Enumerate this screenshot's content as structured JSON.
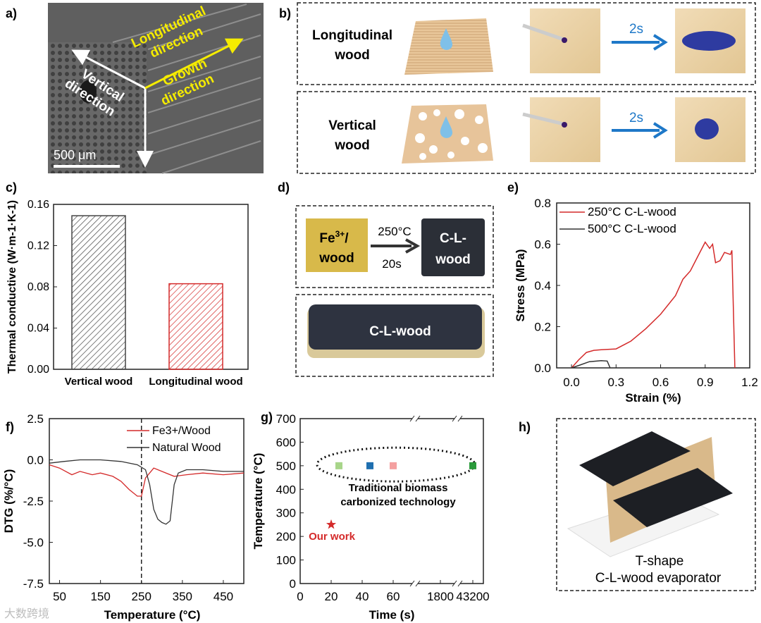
{
  "colors": {
    "red": "#d42a2a",
    "dark": "#222222",
    "blue": "#1e78c8",
    "yellow": "#f5ec00",
    "star": "#d42a2a",
    "hatch_dark": "#444444",
    "hatch_red": "#d42a2a",
    "sem": "#5f5f5f"
  },
  "panels": {
    "a": "a)",
    "b": "b)",
    "c": "c)",
    "d": "d)",
    "e": "e)",
    "f": "f)",
    "g": "g)",
    "h": "h)"
  },
  "sem": {
    "longitudinal": "Longitudinal direction",
    "vertical": "Vertical direction",
    "growth": "Growth direction",
    "scale": "500 μm"
  },
  "wetting": {
    "row1_label": "Longitudinal wood",
    "row2_label": "Vertical wood",
    "time": "2s"
  },
  "process": {
    "left": "Fe3+/wood",
    "arrow_top": "250°C",
    "arrow_bottom": "20s",
    "right": "C-L-wood",
    "photo": "C-L-wood"
  },
  "evaporator": {
    "caption": "T-shape C-L-wood evaporator"
  },
  "watermark": "大数跨境",
  "chart_data": [
    {
      "id": "c",
      "type": "bar",
      "categories": [
        "Vertical wood",
        "Longitudinal wood"
      ],
      "values": [
        0.149,
        0.083
      ],
      "ylabel": "Thermal conductive (W·m-1·K-1)",
      "ylim": [
        0,
        0.16
      ],
      "yticks": [
        "0.00",
        "0.04",
        "0.08",
        "0.12",
        "0.16"
      ]
    },
    {
      "id": "e",
      "type": "line",
      "xlabel": "Strain (%)",
      "ylabel": "Stress (MPa)",
      "xlim": [
        -0.1,
        1.2
      ],
      "ylim": [
        0,
        0.8
      ],
      "xticks": [
        "0.0",
        "0.3",
        "0.6",
        "0.9",
        "1.2"
      ],
      "yticks": [
        "0.0",
        "0.2",
        "0.4",
        "0.6",
        "0.8"
      ],
      "legend_position": "top-left",
      "series": [
        {
          "name": "250°C C-L-wood",
          "color": "#d42a2a",
          "points": [
            [
              0,
              0
            ],
            [
              0.05,
              0.04
            ],
            [
              0.1,
              0.075
            ],
            [
              0.15,
              0.085
            ],
            [
              0.2,
              0.088
            ],
            [
              0.3,
              0.092
            ],
            [
              0.4,
              0.13
            ],
            [
              0.5,
              0.19
            ],
            [
              0.6,
              0.26
            ],
            [
              0.7,
              0.35
            ],
            [
              0.75,
              0.43
            ],
            [
              0.8,
              0.47
            ],
            [
              0.85,
              0.54
            ],
            [
              0.9,
              0.61
            ],
            [
              0.93,
              0.58
            ],
            [
              0.95,
              0.6
            ],
            [
              0.97,
              0.51
            ],
            [
              1.0,
              0.52
            ],
            [
              1.03,
              0.56
            ],
            [
              1.07,
              0.55
            ],
            [
              1.08,
              0.57
            ],
            [
              1.1,
              0.0
            ]
          ]
        },
        {
          "name": "500°C C-L-wood",
          "color": "#333333",
          "points": [
            [
              0,
              0
            ],
            [
              0.05,
              0.012
            ],
            [
              0.12,
              0.03
            ],
            [
              0.2,
              0.035
            ],
            [
              0.24,
              0.033
            ],
            [
              0.26,
              0.0
            ]
          ]
        }
      ]
    },
    {
      "id": "f",
      "type": "line",
      "xlabel": "Temperature (°C)",
      "ylabel": "DTG (%/°C)",
      "xlim": [
        25,
        500
      ],
      "ylim": [
        -7.5,
        2.5
      ],
      "xticks": [
        "50",
        "150",
        "250",
        "350",
        "450"
      ],
      "yticks": [
        "2.5",
        "0.0",
        "-2.5",
        "-5.0",
        "-7.5"
      ],
      "reference_line_x": 250,
      "series": [
        {
          "name": "Fe3+/Wood",
          "color": "#d42a2a",
          "points": [
            [
              25,
              -0.3
            ],
            [
              50,
              -0.5
            ],
            [
              80,
              -0.9
            ],
            [
              100,
              -0.7
            ],
            [
              130,
              -0.9
            ],
            [
              150,
              -0.8
            ],
            [
              180,
              -1.0
            ],
            [
              200,
              -1.3
            ],
            [
              220,
              -1.8
            ],
            [
              240,
              -2.2
            ],
            [
              250,
              -2.2
            ],
            [
              260,
              -1.1
            ],
            [
              280,
              -0.5
            ],
            [
              300,
              -0.7
            ],
            [
              330,
              -1.0
            ],
            [
              360,
              -0.9
            ],
            [
              400,
              -0.8
            ],
            [
              450,
              -0.9
            ],
            [
              500,
              -0.8
            ]
          ]
        },
        {
          "name": "Natural Wood",
          "color": "#333333",
          "points": [
            [
              25,
              -0.2
            ],
            [
              60,
              -0.1
            ],
            [
              100,
              0.0
            ],
            [
              150,
              0.0
            ],
            [
              200,
              -0.1
            ],
            [
              240,
              -0.3
            ],
            [
              260,
              -0.6
            ],
            [
              270,
              -1.5
            ],
            [
              280,
              -3.0
            ],
            [
              290,
              -3.6
            ],
            [
              300,
              -3.8
            ],
            [
              310,
              -3.9
            ],
            [
              320,
              -3.7
            ],
            [
              330,
              -1.5
            ],
            [
              340,
              -0.8
            ],
            [
              360,
              -0.6
            ],
            [
              400,
              -0.6
            ],
            [
              450,
              -0.7
            ],
            [
              500,
              -0.7
            ]
          ]
        }
      ]
    },
    {
      "id": "g",
      "type": "scatter",
      "xlabel": "Time (s)",
      "ylabel": "Temperature (°C)",
      "ylim": [
        0,
        700
      ],
      "xticks": [
        "0",
        "20",
        "40",
        "60",
        "1800",
        "43200"
      ],
      "yticks": [
        "0",
        "100",
        "200",
        "300",
        "400",
        "500",
        "600",
        "700"
      ],
      "series": [
        {
          "name": "Our work",
          "marker": "star",
          "color": "#d42a2a",
          "points": [
            [
              20,
              250
            ]
          ]
        },
        {
          "name": "Traditional biomass carbonized technology",
          "marker": "square",
          "points": [
            [
              25,
              500
            ],
            [
              45,
              500
            ],
            [
              60,
              500
            ],
            [
              43200,
              500
            ]
          ],
          "colors": [
            "#a8d58a",
            "#1f6fb0",
            "#f4a0a0",
            "#2a9a3a"
          ]
        }
      ],
      "annotation": "Traditional biomass carbonized technology",
      "our_work_label": "Our work"
    }
  ]
}
